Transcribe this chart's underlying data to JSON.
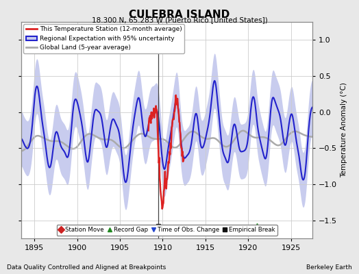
{
  "title": "CULEBRA ISLAND",
  "subtitle": "18.300 N, 65.283 W (Puerto Rico [United States])",
  "xlabel_left": "Data Quality Controlled and Aligned at Breakpoints",
  "xlabel_right": "Berkeley Earth",
  "ylabel": "Temperature Anomaly (°C)",
  "xlim": [
    1893.5,
    1927.5
  ],
  "ylim": [
    -1.75,
    1.25
  ],
  "yticks": [
    -1.5,
    -1.0,
    -0.5,
    0.0,
    0.5,
    1.0
  ],
  "xticks": [
    1895,
    1900,
    1905,
    1910,
    1915,
    1920,
    1925
  ],
  "bg_color": "#e8e8e8",
  "plot_bg_color": "#ffffff",
  "regional_fill_color": "#c8ccee",
  "regional_line_color": "#2222cc",
  "station_line_color": "#dd2222",
  "global_land_color": "#aaaaaa",
  "vline_x": 1909.5,
  "vline_color": "#444444",
  "marker_empirical_x": 1909.5,
  "marker_empirical_y": -1.58,
  "marker_record_gap_x": 1921.0,
  "marker_record_gap_y": -1.58
}
